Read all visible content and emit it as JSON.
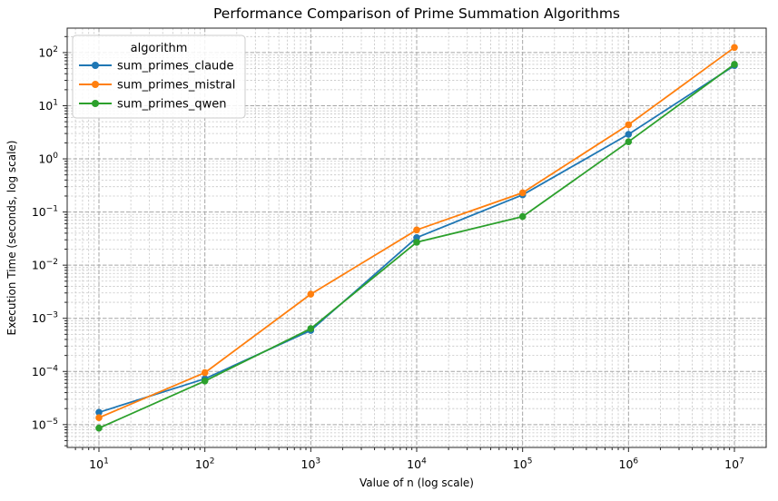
{
  "chart_data": {
    "type": "line",
    "title": "Performance Comparison of Prime Summation Algorithms",
    "xlabel": "Value of n (log scale)",
    "ylabel": "Execution Time (seconds, log scale)",
    "x_scale": "log",
    "y_scale": "log",
    "grid": "both-dashed",
    "legend_title": "algorithm",
    "legend_position": "upper left",
    "x": [
      10,
      100,
      1000,
      10000,
      100000,
      1000000,
      10000000
    ],
    "series": [
      {
        "name": "sum_primes_claude",
        "color": "#1f77b4",
        "values": [
          1.7e-05,
          7.3e-05,
          0.00059,
          0.033,
          0.21,
          2.9,
          57
        ]
      },
      {
        "name": "sum_primes_mistral",
        "color": "#ff7f0e",
        "values": [
          1.35e-05,
          9.5e-05,
          0.00285,
          0.046,
          0.23,
          4.4,
          125
        ]
      },
      {
        "name": "sum_primes_qwen",
        "color": "#2ca02c",
        "values": [
          8.6e-06,
          6.6e-05,
          0.00064,
          0.027,
          0.082,
          2.1,
          60
        ]
      }
    ],
    "tick_mantissa": "10",
    "x_tick_labels": [
      "1",
      "2",
      "3",
      "4",
      "5",
      "6",
      "7"
    ],
    "y_tick_labels": [
      "2",
      "1",
      "0",
      "−1",
      "−2",
      "−3",
      "−4",
      "−5"
    ],
    "xlim_log": [
      0.7,
      7.3
    ],
    "ylim_log": [
      -5.43,
      2.46
    ],
    "colors": {
      "grid_major": "#a6a6a6",
      "grid_minor": "#c6c6c6",
      "spine": "#262626",
      "legend_border": "#cccccc",
      "legend_bg": "rgba(255,255,255,0.85)"
    }
  }
}
